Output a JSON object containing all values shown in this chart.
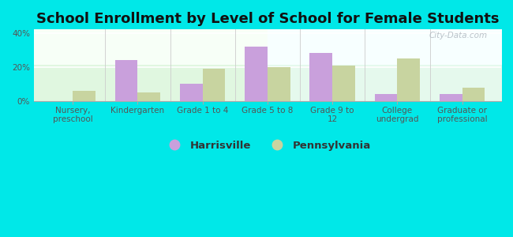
{
  "title": "School Enrollment by Level of School for Female Students",
  "categories": [
    "Nursery,\npreschool",
    "Kindergarten",
    "Grade 1 to 4",
    "Grade 5 to 8",
    "Grade 9 to\n12",
    "College\nundergrad",
    "Graduate or\nprofessional"
  ],
  "harrisville": [
    0.0,
    24.0,
    10.0,
    32.0,
    28.0,
    4.0,
    4.0
  ],
  "pennsylvania": [
    6.0,
    5.0,
    19.0,
    20.0,
    21.0,
    25.0,
    8.0
  ],
  "harrisville_color": "#c9a0dc",
  "pennsylvania_color": "#c8d4a0",
  "background_color": "#00e8e8",
  "title_fontsize": 13,
  "tick_fontsize": 7.5,
  "legend_fontsize": 9.5,
  "ylim": [
    0,
    42
  ],
  "yticks": [
    0,
    20,
    40
  ],
  "bar_width": 0.35,
  "watermark": "City-Data.com"
}
